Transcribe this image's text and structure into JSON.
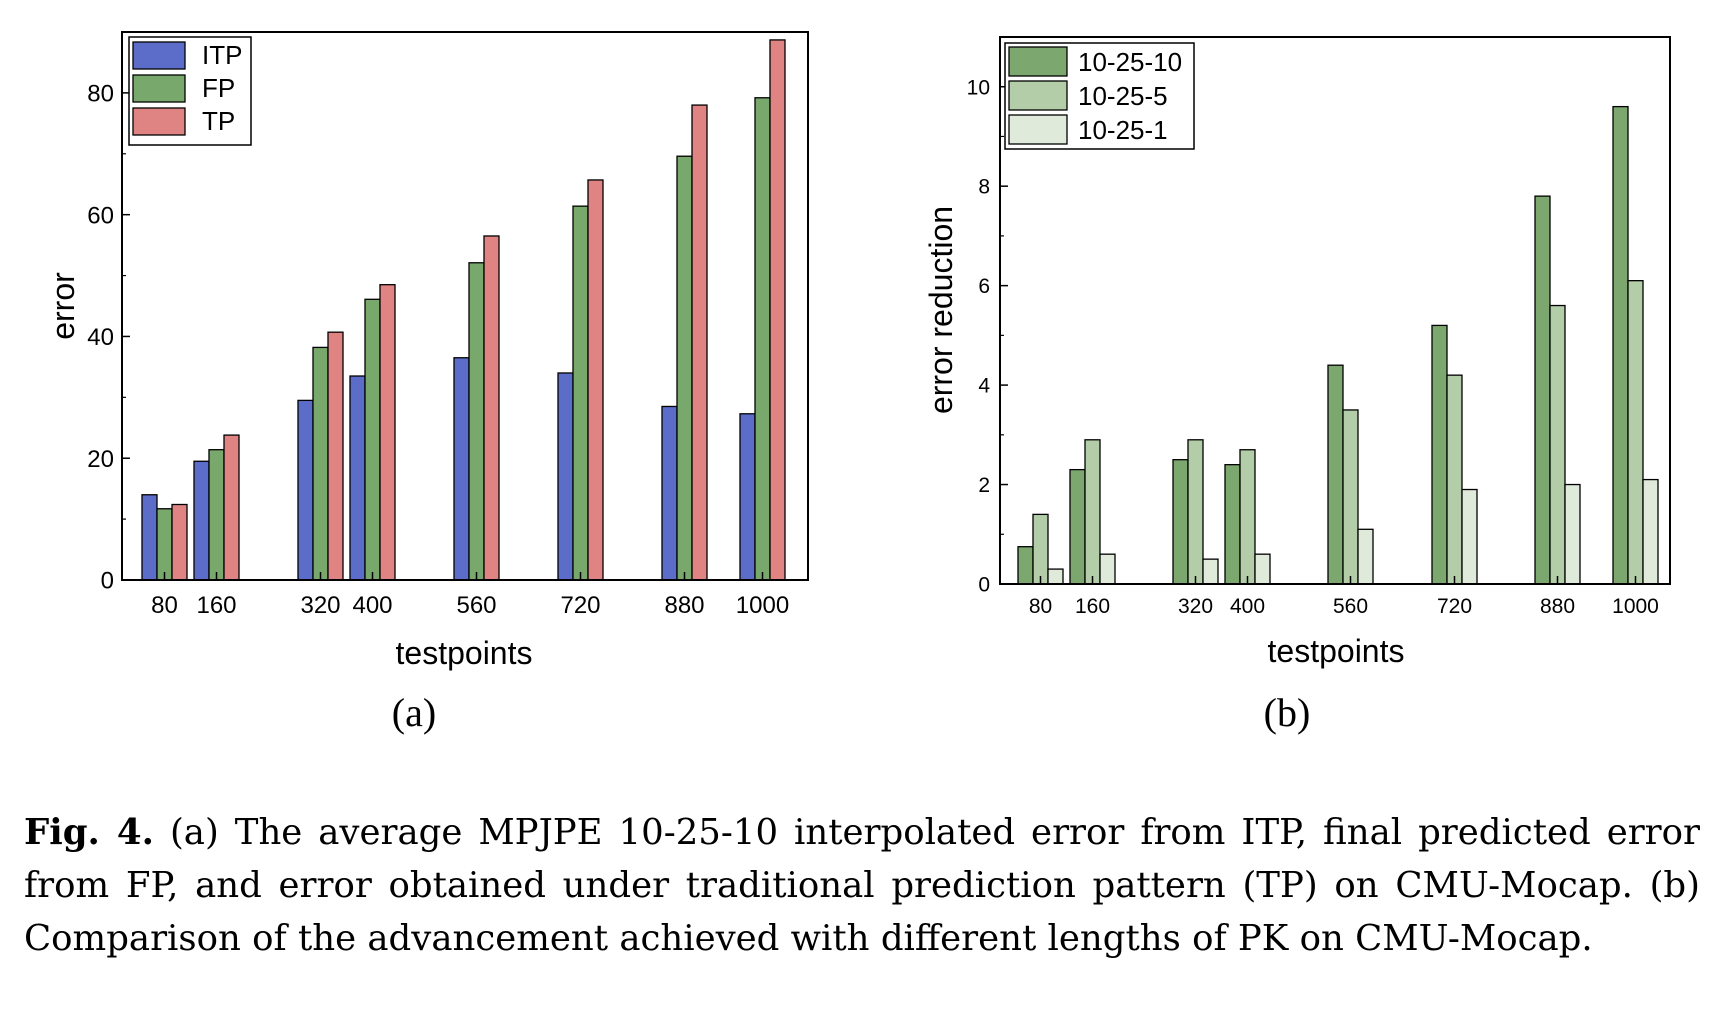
{
  "chart_data": [
    {
      "type": "bar",
      "panel_label": "(a)",
      "xlabel": "testpoints",
      "ylabel": "error",
      "ylim": [
        0,
        90
      ],
      "yticks": [
        0,
        20,
        40,
        60,
        80
      ],
      "categories": [
        "80",
        "160",
        "320",
        "400",
        "560",
        "720",
        "880",
        "1000"
      ],
      "series": [
        {
          "name": "ITP",
          "color": "#5b6dc8",
          "values": [
            14,
            19.5,
            29.5,
            33.5,
            36.5,
            34,
            28.5,
            27.3
          ]
        },
        {
          "name": "FP",
          "color": "#78a86c",
          "values": [
            11.7,
            21.4,
            38.2,
            46.1,
            52.1,
            61.4,
            69.6,
            79.2
          ]
        },
        {
          "name": "TP",
          "color": "#e08383",
          "values": [
            12.4,
            23.8,
            40.7,
            48.5,
            56.5,
            65.7,
            78,
            88.7
          ]
        }
      ],
      "legend": "top-left",
      "grid": false
    },
    {
      "type": "bar",
      "panel_label": "(b)",
      "xlabel": "testpoints",
      "ylabel": "error reduction",
      "ylim": [
        0,
        11
      ],
      "yticks": [
        0,
        2,
        4,
        6,
        8,
        10
      ],
      "categories": [
        "80",
        "160",
        "320",
        "400",
        "560",
        "720",
        "880",
        "1000"
      ],
      "series": [
        {
          "name": "10-25-10",
          "color": "#7ca86f",
          "values": [
            0.75,
            2.3,
            2.5,
            2.4,
            4.4,
            5.2,
            7.8,
            9.6
          ]
        },
        {
          "name": "10-25-5",
          "color": "#b2cda7",
          "values": [
            1.4,
            2.9,
            2.9,
            2.7,
            3.5,
            4.2,
            5.6,
            6.1
          ]
        },
        {
          "name": "10-25-1",
          "color": "#e0eadb",
          "values": [
            0.3,
            0.6,
            0.5,
            0.6,
            1.1,
            1.9,
            2.0,
            2.1
          ]
        }
      ],
      "legend": "top-left",
      "grid": false
    }
  ],
  "caption": {
    "label": "Fig. 4.",
    "text": "(a) The average MPJPE 10-25-10 interpolated error from ITP, final predicted error from FP, and error obtained under traditional prediction pattern (TP) on CMU-Mocap. (b) Comparison of the advancement achieved with different lengths of PK on CMU-Mocap."
  }
}
